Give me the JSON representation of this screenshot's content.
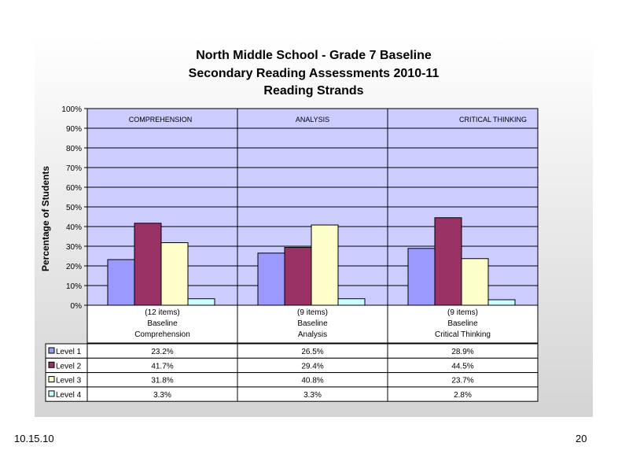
{
  "chart_data": {
    "type": "bar",
    "title": [
      "North Middle School - Grade 7 Baseline",
      "Secondary Reading Assessments 2010-11",
      "Reading Strands"
    ],
    "ylabel": "Percentage of Students",
    "ylim": [
      0,
      100
    ],
    "yticks": [
      "0%",
      "10%",
      "20%",
      "30%",
      "40%",
      "50%",
      "60%",
      "70%",
      "80%",
      "90%",
      "100%"
    ],
    "strand_labels": [
      "COMPREHENSION",
      "ANALYSIS",
      "CRITICAL THINKING"
    ],
    "categories": [
      [
        "(12 items)",
        "Baseline",
        "Comprehension"
      ],
      [
        "(9 items)",
        "Baseline",
        "Analysis"
      ],
      [
        "(9 items)",
        "Baseline",
        "Critical Thinking"
      ]
    ],
    "series": [
      {
        "name": "Level 1",
        "values": [
          23.2,
          26.5,
          28.9
        ],
        "labels": [
          "23.2%",
          "26.5%",
          "28.9%"
        ],
        "color": "#9999ff"
      },
      {
        "name": "Level 2",
        "values": [
          41.7,
          29.4,
          44.5
        ],
        "labels": [
          "41.7%",
          "29.4%",
          "44.5%"
        ],
        "color": "#993366"
      },
      {
        "name": "Level 3",
        "values": [
          31.8,
          40.8,
          23.7
        ],
        "labels": [
          "31.8%",
          "40.8%",
          "23.7%"
        ],
        "color": "#ffffcc"
      },
      {
        "name": "Level 4",
        "values": [
          3.3,
          3.3,
          2.8
        ],
        "labels": [
          "3.3%",
          "3.3%",
          "2.8%"
        ],
        "color": "#ccffff"
      }
    ],
    "plot_background": "#ccccff",
    "grid": true,
    "legend": "data-table"
  },
  "footer": {
    "date": "10.15.10",
    "page": "20"
  }
}
